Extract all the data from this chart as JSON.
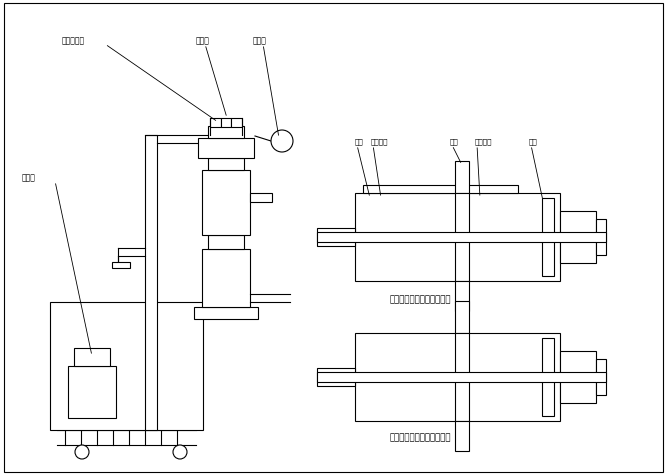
{
  "bg_color": "#ffffff",
  "line_color": "#000000",
  "title1": "上料时气动三通阀阀片位置",
  "title2": "放料时气动三通阀阀片位置",
  "label_qizhan": "气站三通阀",
  "label_chongji": "脉冲阀",
  "label_fanpeng": "反吹器",
  "label_zhenkongjia": "真空泵",
  "right_labels_upper": [
    "阀片",
    "橡皮垫圈",
    "阀片",
    "导航柱台",
    "气缸"
  ],
  "lw": 0.8
}
